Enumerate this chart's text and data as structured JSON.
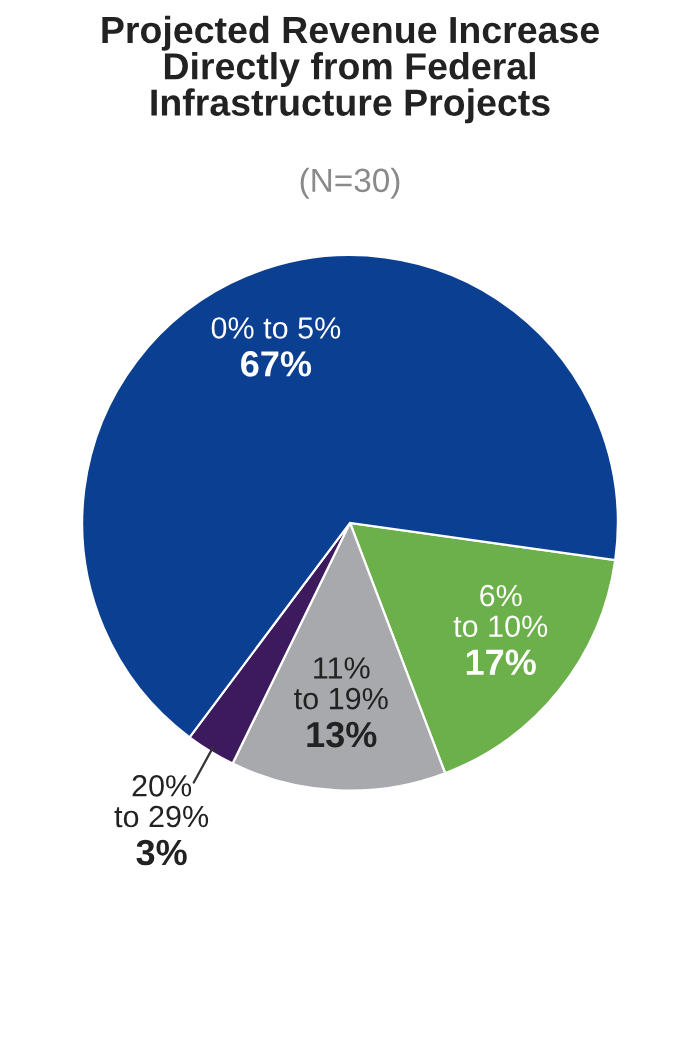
{
  "chart_data": {
    "type": "pie",
    "title": "Projected Revenue Increase\nDirectly from Federal\nInfrastructure Projects",
    "subtitle": "(N=30)",
    "categories": [
      "6%\nto 10%",
      "11%\nto 19%",
      "20%\nto 29%",
      "0% to 5%"
    ],
    "values": [
      17,
      13,
      3,
      67
    ],
    "colors": [
      "#6bb04a",
      "#a7a9ac",
      "#3d1a5e",
      "#0b3f91"
    ],
    "value_labels": [
      "17%",
      "13%",
      "3%",
      "67%"
    ]
  }
}
